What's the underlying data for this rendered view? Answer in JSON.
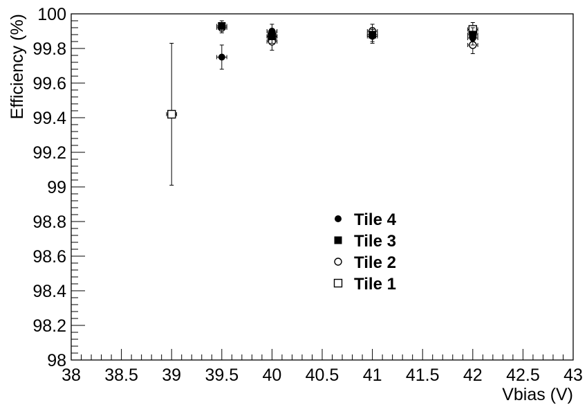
{
  "chart_data": {
    "type": "scatter",
    "title": "",
    "xlabel": "Vbias (V)",
    "ylabel": "Efficiency (%)",
    "xlim": [
      38,
      43
    ],
    "ylim": [
      98,
      100
    ],
    "x_ticks": [
      "38",
      "38.5",
      "39",
      "39.5",
      "40",
      "40.5",
      "41",
      "41.5",
      "42",
      "42.5",
      "43"
    ],
    "y_ticks": [
      "98",
      "98.2",
      "98.4",
      "98.6",
      "98.8",
      "99",
      "99.2",
      "99.4",
      "99.6",
      "99.8",
      "100"
    ],
    "grid": false,
    "legend_position": "center",
    "series": [
      {
        "name": "Tile 4",
        "marker": "filled-circle",
        "points": [
          {
            "x": 39.5,
            "y": 99.75,
            "yerr": 0.07,
            "xerr": 0.05
          },
          {
            "x": 40.0,
            "y": 99.9,
            "yerr": 0.04,
            "xerr": 0.05
          },
          {
            "x": 41.0,
            "y": 99.87,
            "yerr": 0.04,
            "xerr": 0.05
          },
          {
            "x": 42.0,
            "y": 99.86,
            "yerr": 0.04,
            "xerr": 0.05
          }
        ]
      },
      {
        "name": "Tile 3",
        "marker": "filled-square",
        "points": [
          {
            "x": 39.5,
            "y": 99.93,
            "yerr": 0.03,
            "xerr": 0.05
          },
          {
            "x": 40.0,
            "y": 99.87,
            "yerr": 0.04,
            "xerr": 0.05
          },
          {
            "x": 41.0,
            "y": 99.88,
            "yerr": 0.04,
            "xerr": 0.05
          },
          {
            "x": 42.0,
            "y": 99.88,
            "yerr": 0.04,
            "xerr": 0.05
          }
        ]
      },
      {
        "name": "Tile 2",
        "marker": "open-circle",
        "points": [
          {
            "x": 39.5,
            "y": 99.92,
            "yerr": 0.03,
            "xerr": 0.05
          },
          {
            "x": 40.0,
            "y": 99.84,
            "yerr": 0.05,
            "xerr": 0.05
          },
          {
            "x": 41.0,
            "y": 99.9,
            "yerr": 0.04,
            "xerr": 0.05
          },
          {
            "x": 42.0,
            "y": 99.82,
            "yerr": 0.05,
            "xerr": 0.05
          }
        ]
      },
      {
        "name": "Tile 1",
        "marker": "open-square",
        "points": [
          {
            "x": 39.0,
            "y": 99.42,
            "yerr": 0.41,
            "xerr": 0.05
          },
          {
            "x": 40.0,
            "y": 99.87,
            "yerr": 0.04,
            "xerr": 0.05
          },
          {
            "x": 42.0,
            "y": 99.91,
            "yerr": 0.04,
            "xerr": 0.05
          }
        ]
      }
    ]
  }
}
